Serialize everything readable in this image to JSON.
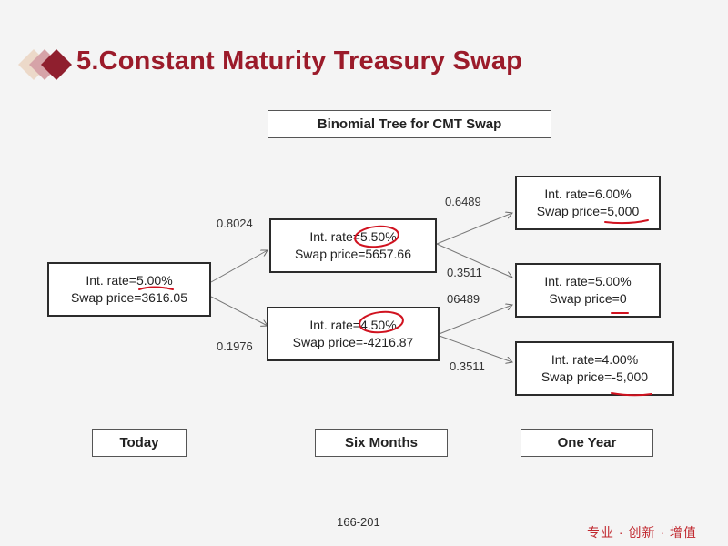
{
  "header": {
    "title": "5.Constant Maturity Treasury Swap"
  },
  "tree": {
    "title": "Binomial Tree for CMT Swap",
    "nodes": {
      "today": {
        "rate": "Int. rate=5.00%",
        "price": "Swap price=3616.05"
      },
      "up": {
        "rate": "Int. rate=5.50%",
        "price": "Swap price=5657.66"
      },
      "down": {
        "rate": "Int. rate=4.50%",
        "price": "Swap price=-4216.87"
      },
      "uu": {
        "rate": "Int. rate=6.00%",
        "price": "Swap price=5,000"
      },
      "ud": {
        "rate": "Int. rate=5.00%",
        "price": "Swap price=0"
      },
      "dd": {
        "rate": "Int. rate=4.00%",
        "price": "Swap price=-5,000"
      }
    },
    "probabilities": {
      "today_up": "0.8024",
      "today_down": "0.1976",
      "up_up": "0.6489",
      "up_down": "0.3511",
      "down_up": "06489",
      "down_down": "0.3511"
    },
    "periods": [
      "Today",
      "Six Months",
      "One Year"
    ]
  },
  "footer": {
    "page_ref": "166-201",
    "slogan": "专业 · 创新 · 增值"
  },
  "colors": {
    "title": "#9b1b2a",
    "annotation": "#d0121f",
    "slogan": "#c0262d"
  }
}
